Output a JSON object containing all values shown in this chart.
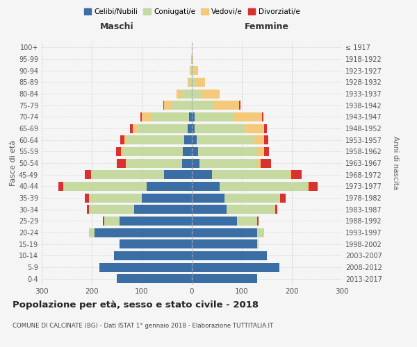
{
  "age_groups": [
    "0-4",
    "5-9",
    "10-14",
    "15-19",
    "20-24",
    "25-29",
    "30-34",
    "35-39",
    "40-44",
    "45-49",
    "50-54",
    "55-59",
    "60-64",
    "65-69",
    "70-74",
    "75-79",
    "80-84",
    "85-89",
    "90-94",
    "95-99",
    "100+"
  ],
  "birth_years": [
    "2013-2017",
    "2008-2012",
    "2003-2007",
    "1998-2002",
    "1993-1997",
    "1988-1992",
    "1983-1987",
    "1978-1982",
    "1973-1977",
    "1968-1972",
    "1963-1967",
    "1958-1962",
    "1953-1957",
    "1948-1952",
    "1943-1947",
    "1938-1942",
    "1933-1937",
    "1928-1932",
    "1923-1927",
    "1918-1922",
    "≤ 1917"
  ],
  "maschi": {
    "celibi": [
      150,
      185,
      155,
      145,
      195,
      145,
      115,
      100,
      90,
      55,
      20,
      18,
      15,
      8,
      5,
      0,
      0,
      0,
      0,
      0,
      0
    ],
    "coniugati": [
      0,
      0,
      0,
      0,
      10,
      30,
      90,
      105,
      165,
      145,
      110,
      120,
      115,
      100,
      75,
      40,
      20,
      5,
      3,
      1,
      0
    ],
    "vedovi": [
      0,
      0,
      0,
      0,
      0,
      0,
      0,
      1,
      2,
      2,
      2,
      3,
      5,
      10,
      20,
      15,
      10,
      3,
      1,
      0,
      0
    ],
    "divorziati": [
      0,
      0,
      0,
      0,
      0,
      3,
      5,
      8,
      10,
      12,
      18,
      10,
      8,
      5,
      3,
      2,
      0,
      0,
      0,
      0,
      0
    ]
  },
  "femmine": {
    "nubili": [
      130,
      175,
      150,
      130,
      130,
      90,
      70,
      65,
      55,
      40,
      15,
      12,
      10,
      5,
      5,
      0,
      0,
      0,
      0,
      0,
      0
    ],
    "coniugate": [
      0,
      0,
      0,
      3,
      15,
      40,
      95,
      110,
      175,
      155,
      115,
      120,
      115,
      100,
      80,
      45,
      20,
      8,
      4,
      1,
      0
    ],
    "vedove": [
      0,
      0,
      0,
      0,
      0,
      1,
      1,
      2,
      3,
      3,
      8,
      12,
      20,
      40,
      55,
      50,
      35,
      18,
      8,
      2,
      0
    ],
    "divorziate": [
      0,
      0,
      0,
      0,
      0,
      2,
      5,
      10,
      18,
      22,
      20,
      10,
      8,
      5,
      3,
      2,
      1,
      0,
      0,
      0,
      0
    ]
  },
  "colors": {
    "celibi": "#3a6ea5",
    "coniugati": "#c5d9a0",
    "vedovi": "#f5c97a",
    "divorziati": "#d93030"
  },
  "xlim": 300,
  "title": "Popolazione per età, sesso e stato civile - 2018",
  "subtitle": "COMUNE DI CALCINATE (BG) - Dati ISTAT 1° gennaio 2018 - Elaborazione TUTTITALIA.IT",
  "ylabel_left": "Fasce di età",
  "ylabel_right": "Anni di nascita",
  "xlabel_maschi": "Maschi",
  "xlabel_femmine": "Femmine",
  "background_color": "#f5f5f5",
  "grid_color": "#cccccc"
}
